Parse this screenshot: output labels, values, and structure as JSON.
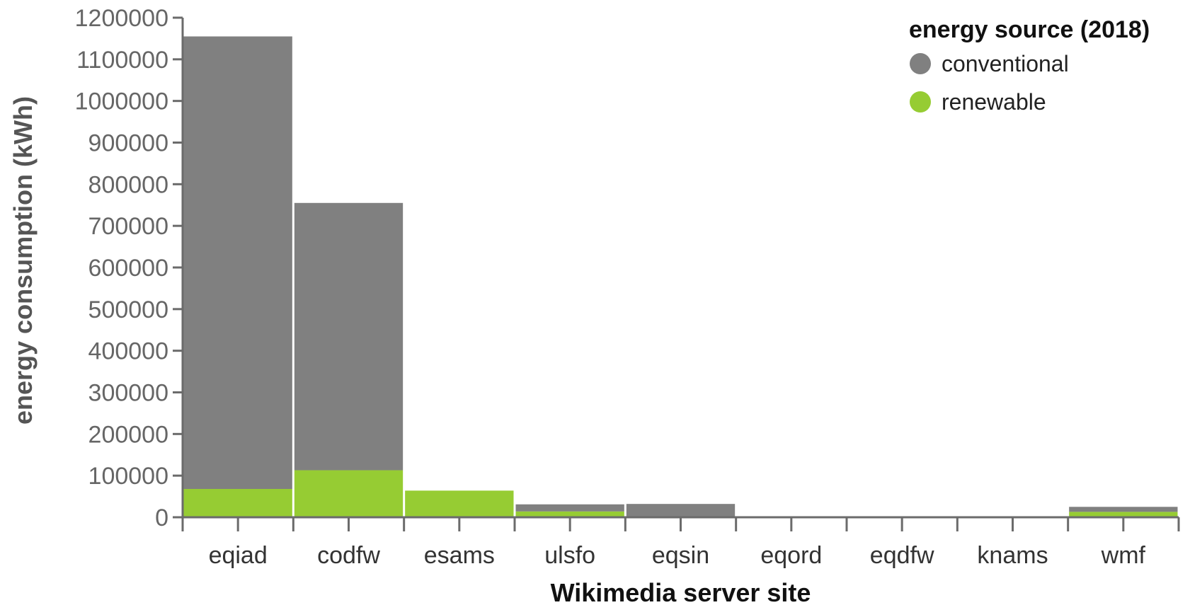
{
  "chart_data": {
    "type": "bar",
    "stacked": true,
    "categories": [
      "eqiad",
      "codfw",
      "esams",
      "ulsfo",
      "eqsin",
      "eqord",
      "eqdfw",
      "knams",
      "wmf"
    ],
    "series": [
      {
        "name": "renewable",
        "color": "#96cc33",
        "values": [
          68000,
          113000,
          64000,
          14000,
          0,
          0,
          0,
          0,
          13000
        ]
      },
      {
        "name": "conventional",
        "color": "#808080",
        "values": [
          1087000,
          642000,
          0,
          17000,
          32000,
          2000,
          1000,
          1500,
          12000
        ]
      }
    ],
    "xlabel": "Wikimedia server site",
    "ylabel": "energy consumption (kWh)",
    "ylim": [
      0,
      1200000
    ],
    "yticks": [
      "0",
      "100000",
      "200000",
      "300000",
      "400000",
      "500000",
      "600000",
      "700000",
      "800000",
      "900000",
      "1000000",
      "1100000",
      "1200000"
    ],
    "grid": false,
    "legend": {
      "title": "energy source (2018)",
      "placement": "top-right",
      "entries": [
        {
          "label": "conventional",
          "color": "#808080"
        },
        {
          "label": "renewable",
          "color": "#96cc33"
        }
      ]
    },
    "axis_color": "#6b6b6b",
    "axis_title_color": "#555555"
  }
}
